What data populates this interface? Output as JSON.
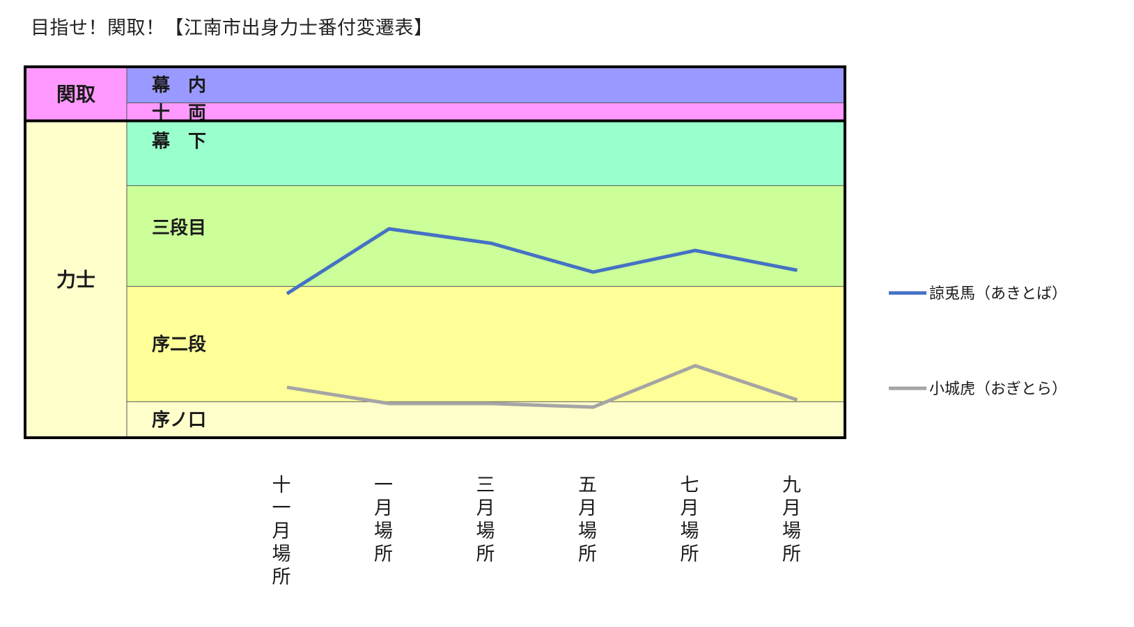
{
  "title": "目指せ！関取！【江南市出身力士番付変遷表】",
  "chart_data": {
    "type": "line",
    "title": "目指せ！関取！【江南市出身力士番付変遷表】",
    "groups": [
      {
        "label": "関取",
        "bands": [
          "幕内",
          "十両"
        ],
        "color": "#ff99ff"
      },
      {
        "label": "力士",
        "bands": [
          "幕下",
          "三段目",
          "序二段",
          "序ノ口"
        ],
        "color": "#ffffcc"
      }
    ],
    "bands": [
      {
        "label": "幕　内",
        "key": "幕内",
        "color": "#9999ff",
        "from": 0,
        "to": 1
      },
      {
        "label": "十　両",
        "key": "十両",
        "color": "#ff99ff",
        "from": 1,
        "to": 1.5
      },
      {
        "label": "幕　下",
        "key": "幕下",
        "color": "#99ffcc",
        "from": 1.5,
        "to": 3.3
      },
      {
        "label": "三段目",
        "key": "三段目",
        "color": "#ccff99",
        "from": 3.3,
        "to": 6.1
      },
      {
        "label": "序二段",
        "key": "序二段",
        "color": "#ffff99",
        "from": 6.1,
        "to": 9.3
      },
      {
        "label": "序ノ口",
        "key": "序ノ口",
        "color": "#ffffcc",
        "from": 9.3,
        "to": 10.3
      }
    ],
    "categories": [
      "十一月場所",
      "一月場所",
      "三月場所",
      "五月場所",
      "七月場所",
      "九月場所"
    ],
    "series": [
      {
        "name": "諒兎馬（あきとば）",
        "color": "#4472c4",
        "values": [
          6.3,
          4.5,
          4.9,
          5.7,
          5.1,
          5.65
        ]
      },
      {
        "name": "小城虎（おぎとら）",
        "color": "#a5a5a5",
        "values": [
          8.9,
          9.35,
          9.35,
          9.45,
          8.3,
          9.25
        ]
      }
    ],
    "ylim": [
      0,
      10.3
    ],
    "y_direction": "higher rank at top",
    "legend": "right",
    "grid": false
  }
}
